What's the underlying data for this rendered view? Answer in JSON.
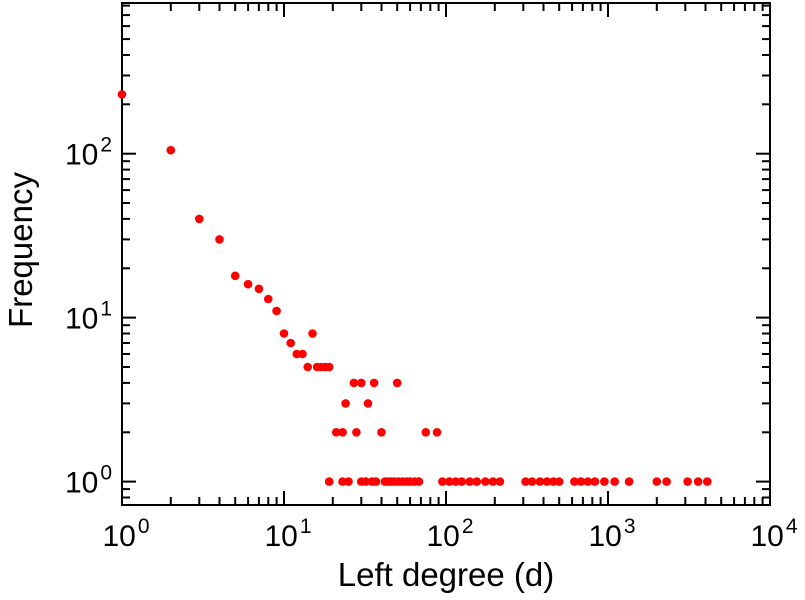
{
  "chart_data": {
    "type": "scatter",
    "title": "",
    "xlabel": "Left degree (d)",
    "ylabel": "Frequency",
    "x_scale": "log",
    "y_scale": "log",
    "xlim": [
      1,
      10000
    ],
    "ylim": [
      0.72,
      830
    ],
    "x_tick_exponents": [
      0,
      1,
      2,
      3,
      4
    ],
    "y_tick_exponents": [
      0,
      1,
      2
    ],
    "tick_label_base": "10",
    "legend": "none",
    "grid": "off",
    "marker": "circle",
    "point_color": "#ff0000",
    "frame_color": "#000000",
    "points": [
      [
        1,
        230
      ],
      [
        2,
        105
      ],
      [
        3,
        40
      ],
      [
        4,
        30
      ],
      [
        5,
        18
      ],
      [
        6,
        16
      ],
      [
        7,
        15
      ],
      [
        8,
        13
      ],
      [
        9,
        11
      ],
      [
        10,
        8
      ],
      [
        11,
        7
      ],
      [
        12,
        6
      ],
      [
        13,
        6
      ],
      [
        14,
        5
      ],
      [
        15,
        8
      ],
      [
        16,
        5
      ],
      [
        17,
        5
      ],
      [
        18,
        5
      ],
      [
        19,
        5
      ],
      [
        21,
        2
      ],
      [
        23,
        2
      ],
      [
        24,
        3
      ],
      [
        27,
        4
      ],
      [
        28,
        2
      ],
      [
        30,
        4
      ],
      [
        33,
        3
      ],
      [
        36,
        4
      ],
      [
        40,
        2
      ],
      [
        50,
        4
      ],
      [
        75,
        2
      ],
      [
        88,
        2
      ],
      [
        19,
        1
      ],
      [
        23,
        1
      ],
      [
        25,
        1
      ],
      [
        30,
        1
      ],
      [
        32,
        1
      ],
      [
        35,
        1
      ],
      [
        37,
        1
      ],
      [
        42,
        1
      ],
      [
        44,
        1
      ],
      [
        46,
        1
      ],
      [
        48,
        1
      ],
      [
        51,
        1
      ],
      [
        54,
        1
      ],
      [
        57,
        1
      ],
      [
        60,
        1
      ],
      [
        64,
        1
      ],
      [
        68,
        1
      ],
      [
        95,
        1
      ],
      [
        105,
        1
      ],
      [
        115,
        1
      ],
      [
        125,
        1
      ],
      [
        140,
        1
      ],
      [
        155,
        1
      ],
      [
        175,
        1
      ],
      [
        195,
        1
      ],
      [
        215,
        1
      ],
      [
        310,
        1
      ],
      [
        340,
        1
      ],
      [
        380,
        1
      ],
      [
        420,
        1
      ],
      [
        460,
        1
      ],
      [
        500,
        1
      ],
      [
        620,
        1
      ],
      [
        680,
        1
      ],
      [
        750,
        1
      ],
      [
        830,
        1
      ],
      [
        950,
        1
      ],
      [
        1100,
        1
      ],
      [
        1350,
        1
      ],
      [
        2000,
        1
      ],
      [
        2300,
        1
      ],
      [
        3100,
        1
      ],
      [
        3600,
        1
      ],
      [
        4100,
        1
      ]
    ]
  }
}
